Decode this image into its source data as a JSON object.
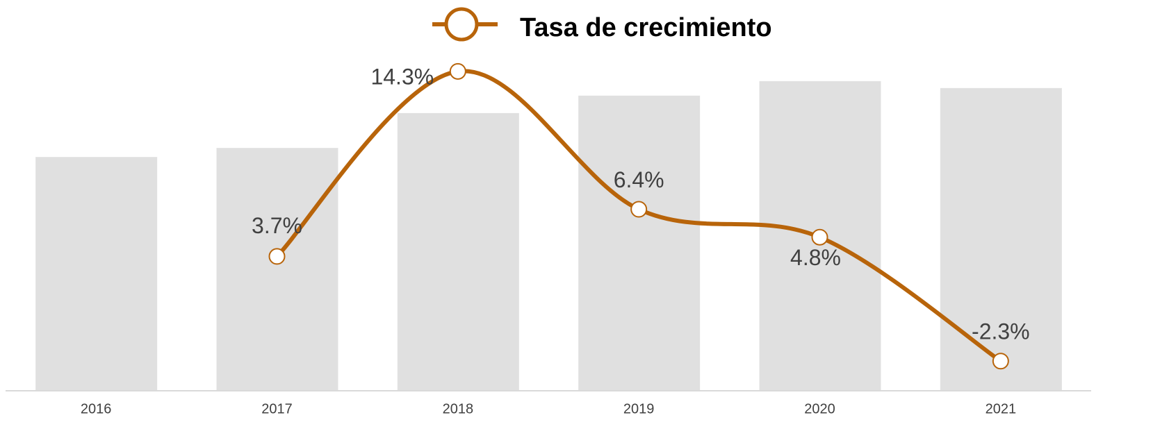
{
  "chart_data": {
    "type": "bar_line",
    "categories": [
      "2016",
      "2017",
      "2018",
      "2019",
      "2020",
      "2021"
    ],
    "ylim": [
      0,
      100
    ],
    "y2lim": [
      -4,
      16.8
    ],
    "series": [
      {
        "type": "bar",
        "color": "#e0e0e0",
        "values": [
          64.4,
          66.9,
          76.5,
          81.3,
          85.3,
          83.4
        ]
      },
      {
        "type": "line",
        "name": "Tasa de crecimiento",
        "color": "#b8640a",
        "axis": "y2",
        "values": [
          null,
          3.7,
          14.3,
          6.4,
          4.8,
          -2.3
        ],
        "value_labels": [
          null,
          "3.7%",
          "14.3%",
          "6.4%",
          "4.8%",
          "-2.3%"
        ]
      }
    ],
    "legend": "top"
  }
}
